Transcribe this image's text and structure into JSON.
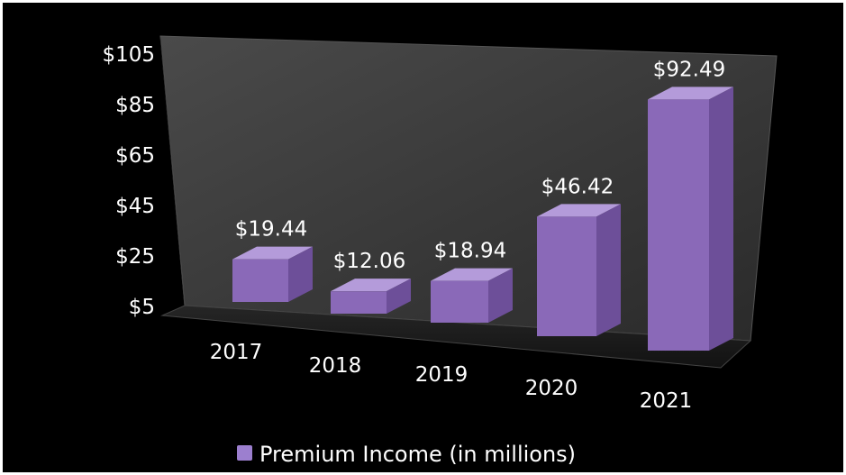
{
  "chart_data": {
    "type": "bar",
    "categories": [
      "2017",
      "2018",
      "2019",
      "2020",
      "2021"
    ],
    "series": [
      {
        "name": "Premium Income (in millions)",
        "values": [
          19.44,
          12.06,
          18.94,
          46.42,
          92.49
        ],
        "data_labels": [
          "$19.44",
          "$12.06",
          "$18.94",
          "$46.42",
          "$92.49"
        ]
      }
    ],
    "y_ticks": [
      "$5",
      "$25",
      "$45",
      "$65",
      "$85",
      "$105"
    ],
    "ylim": [
      5,
      105
    ],
    "title": "",
    "xlabel": "",
    "ylabel": "",
    "legend_position": "bottom",
    "grid": false,
    "style": "3d",
    "colors": {
      "background": "#000000",
      "bar_front": "#8a69b8",
      "bar_top": "#b49bda",
      "bar_side": "#6d4f99",
      "text": "#ffffff",
      "legend_marker": "#9c7fcf"
    }
  }
}
